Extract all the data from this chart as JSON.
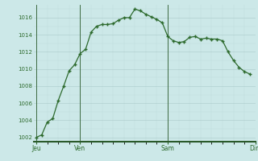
{
  "y_values": [
    1002.0,
    1002.3,
    1003.8,
    1004.2,
    1006.3,
    1008.0,
    1009.8,
    1010.5,
    1011.8,
    1012.3,
    1014.3,
    1015.0,
    1015.2,
    1015.2,
    1015.3,
    1015.7,
    1016.0,
    1016.0,
    1017.0,
    1016.8,
    1016.4,
    1016.1,
    1015.8,
    1015.4,
    1013.8,
    1013.3,
    1013.1,
    1013.2,
    1013.7,
    1013.8,
    1013.5,
    1013.6,
    1013.5,
    1013.5,
    1013.3,
    1012.0,
    1011.0,
    1010.2,
    1009.7,
    1009.4
  ],
  "ylim": [
    1001.5,
    1017.5
  ],
  "yticks": [
    1002,
    1004,
    1006,
    1008,
    1010,
    1012,
    1014,
    1016
  ],
  "day_positions": [
    0,
    8,
    24,
    40
  ],
  "day_labels": [
    "Jeu",
    "Ven",
    "Sam",
    "Dim"
  ],
  "line_color": "#2d6a2d",
  "bg_color": "#cce8e8",
  "grid_major_color": "#aacaca",
  "grid_minor_color": "#bbdada",
  "spine_color": "#2a5a2a",
  "tick_label_color": "#2d6a2d"
}
